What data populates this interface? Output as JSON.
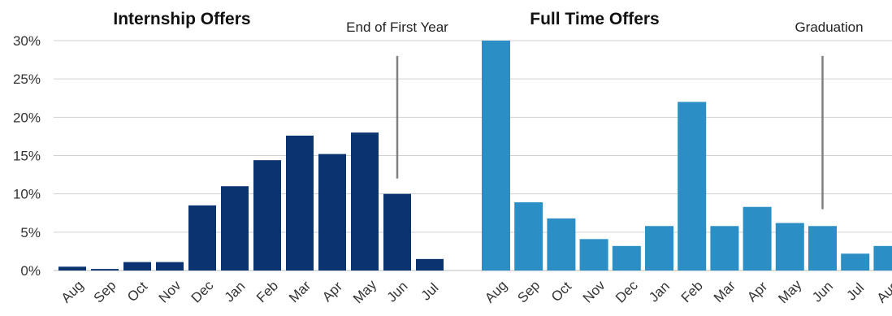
{
  "chart_data": {
    "type": "bar",
    "y_ticks": [
      "0%",
      "5%",
      "10%",
      "15%",
      "20%",
      "25%",
      "30%"
    ],
    "ylim": [
      0,
      30
    ],
    "grid": true,
    "legend": "none",
    "panels": [
      {
        "title": "Internship Offers",
        "color": "#0b3370",
        "categories": [
          "Aug",
          "Sep",
          "Oct",
          "Nov",
          "Dec",
          "Jan",
          "Feb",
          "Mar",
          "Apr",
          "May",
          "Jun",
          "Jul"
        ],
        "values": [
          0.5,
          0.2,
          1.1,
          1.1,
          8.5,
          11.0,
          14.4,
          17.6,
          15.2,
          18.0,
          10.0,
          1.5
        ],
        "annotation": {
          "text": "End of First Year",
          "category": "Jun",
          "y_top": 28,
          "y_bottom": 12
        }
      },
      {
        "title": "Full Time Offers",
        "color": "#2b8fc6",
        "categories": [
          "Aug",
          "Sep",
          "Oct",
          "Nov",
          "Dec",
          "Jan",
          "Feb",
          "Mar",
          "Apr",
          "May",
          "Jun",
          "Jul",
          "Aug"
        ],
        "values": [
          30.0,
          8.9,
          6.8,
          4.1,
          3.2,
          5.8,
          22.0,
          5.8,
          8.3,
          6.2,
          5.8,
          2.2,
          3.2
        ],
        "annotation": {
          "text": "Graduation",
          "category": "Jun",
          "y_top": 28,
          "y_bottom": 8
        }
      }
    ]
  }
}
